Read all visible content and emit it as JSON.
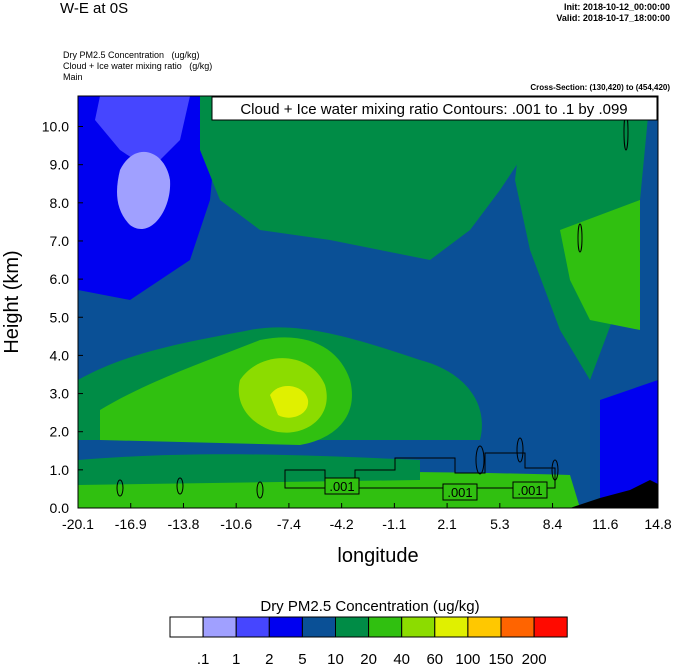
{
  "header": {
    "title": "W-E at 0S",
    "init": "Init: 2018-10-12_00:00:00",
    "valid": "Valid: 2018-10-17_18:00:00",
    "field1": "Dry PM2.5 Concentration   (ug/kg)",
    "field2": "Cloud + Ice water mixing ratio   (g/kg)",
    "field3": "Main",
    "cross_section": "Cross-Section: (130,420) to (454,420)"
  },
  "chart_data": {
    "type": "heatmap",
    "title": "Cloud + Ice water mixing ratio Contours: .001 to .1 by .099",
    "xlabel": "longitude",
    "ylabel": "Height (km)",
    "xlim": [
      -20.1,
      14.8
    ],
    "ylim": [
      0,
      10.8
    ],
    "xticks": [
      "-20.1",
      "-16.9",
      "-13.8",
      "-10.6",
      "-7.4",
      "-4.2",
      "-1.1",
      "2.1",
      "5.3",
      "8.4",
      "11.6",
      "14.8"
    ],
    "yticks": [
      "0.0",
      "1.0",
      "2.0",
      "3.0",
      "4.0",
      "5.0",
      "6.0",
      "7.0",
      "8.0",
      "9.0",
      "10.0"
    ],
    "ytick_values": [
      0,
      1,
      2,
      3,
      4,
      5,
      6,
      7,
      8,
      9,
      10
    ],
    "contour_labels": [
      ".001",
      ".001",
      ".001"
    ],
    "colorbar": {
      "title": "Dry PM2.5 Concentration  (ug/kg)",
      "levels": [
        ".1",
        "1",
        "2",
        "5",
        "10",
        "20",
        "40",
        "60",
        "100",
        "150",
        "200"
      ],
      "colors": [
        "#ffffff",
        "#a0a0ff",
        "#4646ff",
        "#0000f0",
        "#0a5096",
        "#008c46",
        "#30c010",
        "#8cdc00",
        "#e0f000",
        "#ffc800",
        "#ff6400",
        "#ff0a00"
      ]
    }
  }
}
